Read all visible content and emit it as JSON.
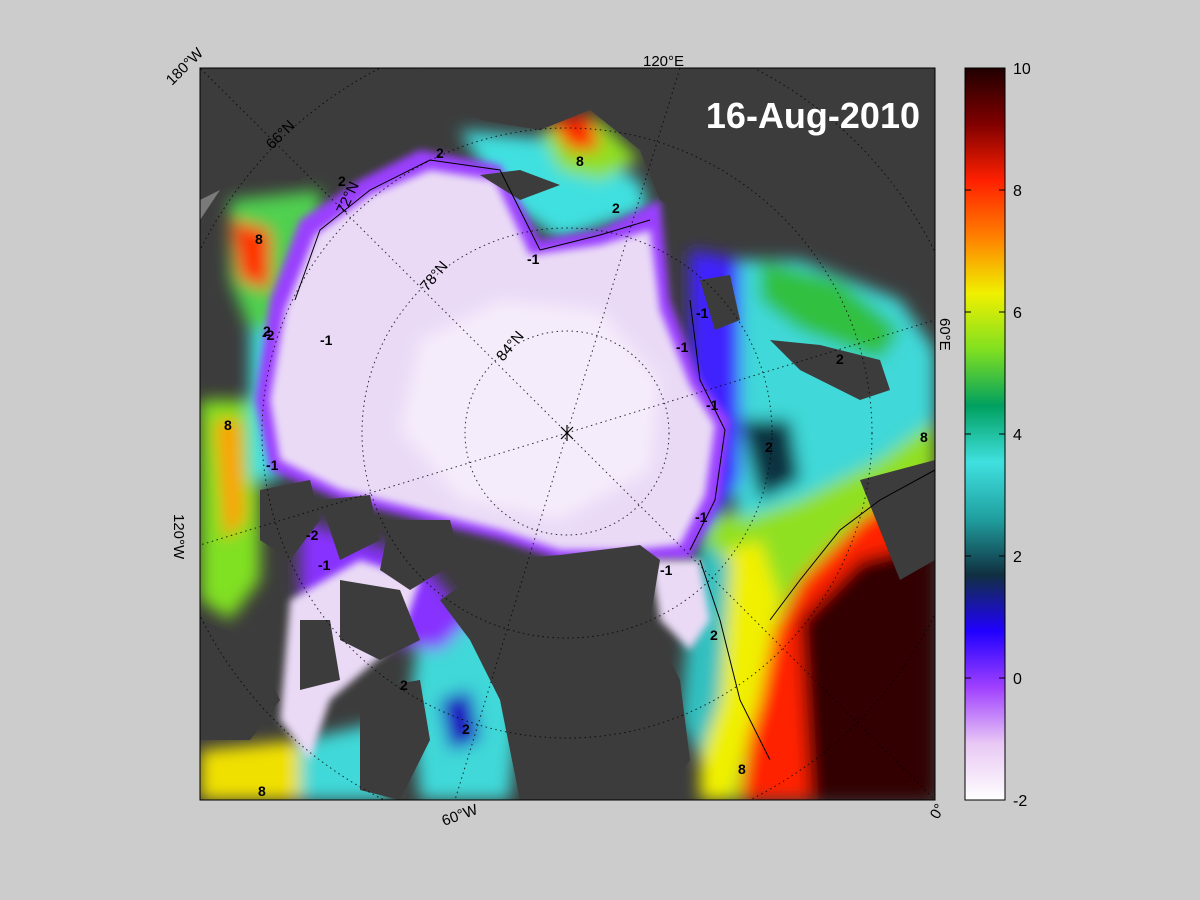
{
  "map": {
    "date_label": "16-Aug-2010",
    "colors": {
      "land": "#3c3c3c",
      "background": "#cccccc",
      "ice": "#f2e6f7"
    },
    "longitude_labels": [
      "180°W",
      "120°E",
      "60°E",
      "0°",
      "60°W",
      "120°W"
    ],
    "latitude_labels": [
      "66°N",
      "72°N",
      "78°N",
      "84°N"
    ],
    "contour_labels": [
      "2",
      "2",
      "8",
      "2",
      "-1",
      "-1",
      "-2",
      "2",
      "-1",
      "-1",
      "-1",
      "2",
      "2",
      "-1",
      "-1",
      "-1",
      "-2",
      "2",
      "-1",
      "2",
      "8",
      "8",
      "8",
      "8",
      "2",
      "8"
    ]
  },
  "colorbar": {
    "ticks": [
      "10",
      "8",
      "6",
      "4",
      "2",
      "0",
      "-2"
    ],
    "range": [
      -2,
      10
    ],
    "stops": [
      "#ffffff",
      "#e8c8f4",
      "#a040ff",
      "#2000ff",
      "#103040",
      "#20a0a0",
      "#40e0e0",
      "#00a060",
      "#80e020",
      "#f0f000",
      "#ff8000",
      "#ff2000",
      "#800000",
      "#200000"
    ]
  }
}
